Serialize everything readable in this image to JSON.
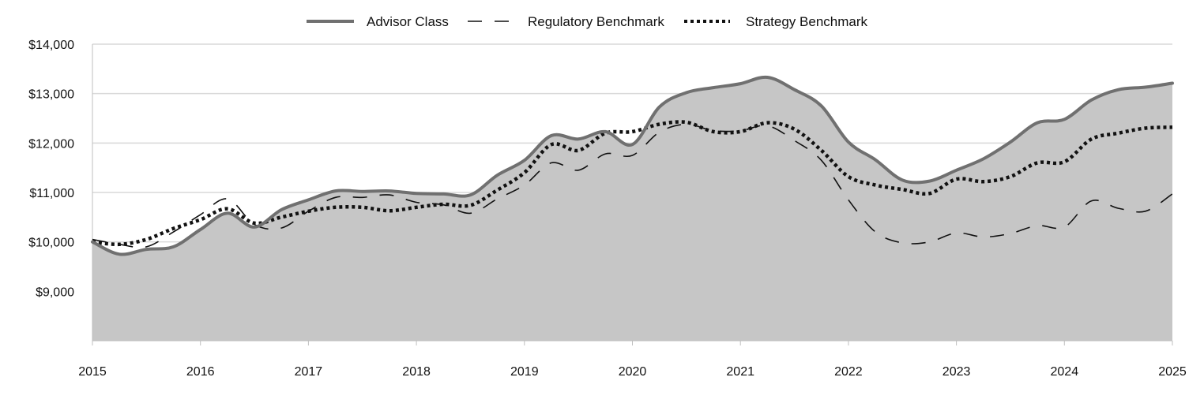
{
  "chart_data": {
    "type": "area",
    "title": "",
    "xlabel": "",
    "ylabel": "",
    "x_ticks": [
      "2015",
      "2016",
      "2017",
      "2018",
      "2019",
      "2020",
      "2021",
      "2022",
      "2023",
      "2024",
      "2025"
    ],
    "y_ticks": [
      "$9,000",
      "$10,000",
      "$11,000",
      "$12,000",
      "$13,000",
      "$14,000"
    ],
    "y_tick_values": [
      9000,
      10000,
      11000,
      12000,
      13000,
      14000
    ],
    "xlim": [
      2015,
      2025
    ],
    "ylim": [
      8000,
      14000
    ],
    "grid": true,
    "legend_position": "top-center",
    "series": [
      {
        "name": "Advisor Class",
        "style": "solid-area",
        "color": "#707070",
        "fill": "#c6c6c6",
        "x": [
          2015,
          2015.25,
          2015.5,
          2015.75,
          2016,
          2016.25,
          2016.5,
          2016.75,
          2017,
          2017.25,
          2017.5,
          2017.75,
          2018,
          2018.25,
          2018.5,
          2018.75,
          2019,
          2019.25,
          2019.5,
          2019.75,
          2020,
          2020.25,
          2020.5,
          2020.75,
          2021,
          2021.25,
          2021.5,
          2021.75,
          2022,
          2022.25,
          2022.5,
          2022.75,
          2023,
          2023.25,
          2023.5,
          2023.75,
          2024,
          2024.25,
          2024.5,
          2024.75,
          2025
        ],
        "values": [
          10000,
          9750,
          9850,
          9900,
          10250,
          10580,
          10300,
          10650,
          10850,
          11030,
          11020,
          11030,
          10980,
          10970,
          10950,
          11350,
          11650,
          12150,
          12080,
          12230,
          11970,
          12730,
          13020,
          13120,
          13200,
          13330,
          13080,
          12750,
          12020,
          11660,
          11250,
          11230,
          11450,
          11680,
          12020,
          12410,
          12480,
          12870,
          13080,
          13130,
          13210
        ]
      },
      {
        "name": "Regulatory Benchmark",
        "style": "dashed",
        "color": "#111111",
        "x": [
          2015,
          2015.25,
          2015.5,
          2015.75,
          2016,
          2016.25,
          2016.5,
          2016.75,
          2017,
          2017.25,
          2017.5,
          2017.75,
          2018,
          2018.25,
          2018.5,
          2018.75,
          2019,
          2019.25,
          2019.5,
          2019.75,
          2020,
          2020.25,
          2020.5,
          2020.75,
          2021,
          2021.25,
          2021.5,
          2021.75,
          2022,
          2022.25,
          2022.5,
          2022.75,
          2023,
          2023.25,
          2023.5,
          2023.75,
          2024,
          2024.25,
          2024.5,
          2024.75,
          2025
        ],
        "values": [
          10050,
          9950,
          9900,
          10200,
          10550,
          10870,
          10350,
          10280,
          10620,
          10900,
          10900,
          10950,
          10800,
          10750,
          10580,
          10870,
          11150,
          11600,
          11450,
          11780,
          11750,
          12220,
          12380,
          12250,
          12250,
          12350,
          12050,
          11650,
          10850,
          10200,
          9980,
          10000,
          10180,
          10100,
          10170,
          10330,
          10300,
          10830,
          10680,
          10620,
          10970
        ]
      },
      {
        "name": "Strategy Benchmark",
        "style": "dotted",
        "color": "#111111",
        "x": [
          2015,
          2015.25,
          2015.5,
          2015.75,
          2016,
          2016.25,
          2016.5,
          2016.75,
          2017,
          2017.25,
          2017.5,
          2017.75,
          2018,
          2018.25,
          2018.5,
          2018.75,
          2019,
          2019.25,
          2019.5,
          2019.75,
          2020,
          2020.25,
          2020.5,
          2020.75,
          2021,
          2021.25,
          2021.5,
          2021.75,
          2022,
          2022.25,
          2022.5,
          2022.75,
          2023,
          2023.25,
          2023.5,
          2023.75,
          2024,
          2024.25,
          2024.5,
          2024.75,
          2025
        ],
        "values": [
          10000,
          9950,
          10050,
          10270,
          10450,
          10670,
          10380,
          10500,
          10620,
          10700,
          10700,
          10630,
          10700,
          10760,
          10740,
          11050,
          11400,
          11970,
          11850,
          12200,
          12230,
          12380,
          12420,
          12230,
          12230,
          12410,
          12280,
          11850,
          11320,
          11150,
          11060,
          10980,
          11270,
          11220,
          11320,
          11600,
          11620,
          12080,
          12200,
          12300,
          12320
        ]
      }
    ]
  }
}
